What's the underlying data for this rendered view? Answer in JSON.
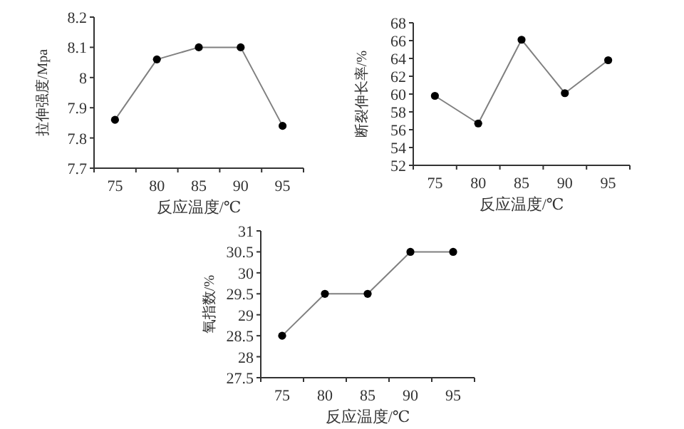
{
  "chart_data": [
    {
      "type": "line",
      "categories": [
        "75",
        "80",
        "85",
        "90",
        "95"
      ],
      "values": [
        7.86,
        8.06,
        8.1,
        8.1,
        7.84
      ],
      "color": "#808080",
      "marker": "circle",
      "xlabel": "反应温度/℃",
      "ylabel": "拉伸强度/Mpa",
      "ylim": [
        7.7,
        8.2
      ],
      "yticks": [
        7.7,
        7.8,
        7.9,
        8,
        8.1,
        8.2
      ],
      "grid": false
    },
    {
      "type": "line",
      "categories": [
        "75",
        "80",
        "85",
        "90",
        "95"
      ],
      "values": [
        59.8,
        56.7,
        66.1,
        60.1,
        63.8
      ],
      "color": "#808080",
      "marker": "circle",
      "xlabel": "反应温度/℃",
      "ylabel": "断裂伸长率/%",
      "ylim": [
        52,
        68
      ],
      "yticks": [
        52,
        54,
        56,
        58,
        60,
        62,
        64,
        66,
        68
      ],
      "grid": false
    },
    {
      "type": "line",
      "categories": [
        "75",
        "80",
        "85",
        "90",
        "95"
      ],
      "values": [
        28.5,
        29.5,
        29.5,
        30.5,
        30.5
      ],
      "color": "#808080",
      "marker": "circle",
      "xlabel": "反应温度/℃",
      "ylabel": "氧指数/%",
      "ylim": [
        27.5,
        31
      ],
      "yticks": [
        27.5,
        28,
        28.5,
        29,
        29.5,
        30,
        30.5,
        31
      ],
      "grid": false
    }
  ]
}
